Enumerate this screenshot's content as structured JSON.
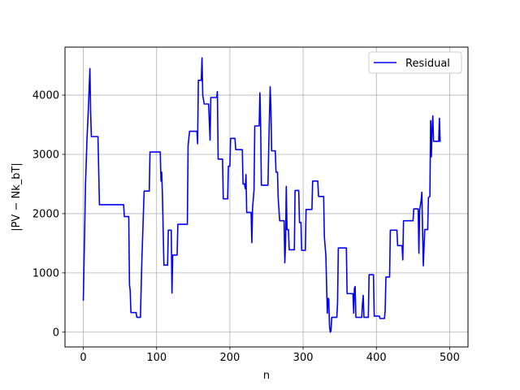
{
  "chart_data": {
    "type": "line",
    "xlabel": "n",
    "ylabel": "|PV − Nk_bT|",
    "xlim": [
      -25,
      525
    ],
    "ylim": [
      -250,
      4810
    ],
    "xticks": [
      0,
      100,
      200,
      300,
      400,
      500
    ],
    "yticks": [
      0,
      1000,
      2000,
      3000,
      4000
    ],
    "grid": true,
    "legend_position": "top-right",
    "series": [
      {
        "name": "Residual",
        "color": "#0000ff",
        "points": [
          [
            0,
            530
          ],
          [
            3,
            2500
          ],
          [
            5,
            3250
          ],
          [
            7,
            3800
          ],
          [
            9,
            4450
          ],
          [
            10,
            3700
          ],
          [
            11,
            3300
          ],
          [
            20,
            3300
          ],
          [
            22,
            2150
          ],
          [
            55,
            2150
          ],
          [
            56,
            1950
          ],
          [
            62,
            1950
          ],
          [
            63,
            800
          ],
          [
            64,
            700
          ],
          [
            65,
            330
          ],
          [
            72,
            330
          ],
          [
            73,
            250
          ],
          [
            78,
            250
          ],
          [
            79,
            780
          ],
          [
            80,
            1250
          ],
          [
            83,
            2380
          ],
          [
            90,
            2380
          ],
          [
            91,
            3040
          ],
          [
            105,
            3040
          ],
          [
            106,
            2550
          ],
          [
            107,
            2700
          ],
          [
            108,
            2300
          ],
          [
            110,
            1130
          ],
          [
            115,
            1130
          ],
          [
            116,
            1720
          ],
          [
            120,
            1720
          ],
          [
            121,
            660
          ],
          [
            122,
            1300
          ],
          [
            128,
            1300
          ],
          [
            129,
            1820
          ],
          [
            142,
            1820
          ],
          [
            143,
            3150
          ],
          [
            145,
            3390
          ],
          [
            155,
            3390
          ],
          [
            156,
            3180
          ],
          [
            157,
            4250
          ],
          [
            161,
            4250
          ],
          [
            162,
            4630
          ],
          [
            163,
            4000
          ],
          [
            165,
            3850
          ],
          [
            171,
            3850
          ],
          [
            173,
            3240
          ],
          [
            174,
            3960
          ],
          [
            182,
            3960
          ],
          [
            183,
            4060
          ],
          [
            184,
            2920
          ],
          [
            190,
            2920
          ],
          [
            191,
            2250
          ],
          [
            197,
            2250
          ],
          [
            198,
            2800
          ],
          [
            200,
            2800
          ],
          [
            201,
            3270
          ],
          [
            207,
            3270
          ],
          [
            208,
            3080
          ],
          [
            217,
            3080
          ],
          [
            218,
            2500
          ],
          [
            220,
            2500
          ],
          [
            221,
            2420
          ],
          [
            222,
            2660
          ],
          [
            223,
            2020
          ],
          [
            229,
            2020
          ],
          [
            230,
            1510
          ],
          [
            231,
            2100
          ],
          [
            233,
            2400
          ],
          [
            234,
            3480
          ],
          [
            240,
            3480
          ],
          [
            241,
            4040
          ],
          [
            242,
            3500
          ],
          [
            243,
            2480
          ],
          [
            252,
            2480
          ],
          [
            253,
            3100
          ],
          [
            255,
            4140
          ],
          [
            256,
            3800
          ],
          [
            257,
            3060
          ],
          [
            262,
            3060
          ],
          [
            263,
            2700
          ],
          [
            265,
            2700
          ],
          [
            266,
            2250
          ],
          [
            268,
            1880
          ],
          [
            274,
            1880
          ],
          [
            275,
            1170
          ],
          [
            276,
            1500
          ],
          [
            277,
            2460
          ],
          [
            278,
            1730
          ],
          [
            280,
            1730
          ],
          [
            281,
            1390
          ],
          [
            288,
            1390
          ],
          [
            289,
            2390
          ],
          [
            294,
            2390
          ],
          [
            295,
            1850
          ],
          [
            297,
            1850
          ],
          [
            298,
            1380
          ],
          [
            303,
            1380
          ],
          [
            304,
            2070
          ],
          [
            312,
            2070
          ],
          [
            313,
            2550
          ],
          [
            320,
            2550
          ],
          [
            321,
            2290
          ],
          [
            328,
            2290
          ],
          [
            329,
            1600
          ],
          [
            331,
            1300
          ],
          [
            333,
            320
          ],
          [
            334,
            570
          ],
          [
            335,
            560
          ],
          [
            336,
            100
          ],
          [
            337,
            0
          ],
          [
            338,
            20
          ],
          [
            339,
            250
          ],
          [
            346,
            250
          ],
          [
            347,
            500
          ],
          [
            348,
            1420
          ],
          [
            359,
            1420
          ],
          [
            360,
            650
          ],
          [
            368,
            650
          ],
          [
            369,
            320
          ],
          [
            370,
            740
          ],
          [
            371,
            770
          ],
          [
            372,
            250
          ],
          [
            380,
            250
          ],
          [
            381,
            480
          ],
          [
            382,
            620
          ],
          [
            383,
            250
          ],
          [
            389,
            250
          ],
          [
            390,
            970
          ],
          [
            396,
            970
          ],
          [
            397,
            270
          ],
          [
            404,
            270
          ],
          [
            405,
            230
          ],
          [
            411,
            230
          ],
          [
            412,
            370
          ],
          [
            413,
            930
          ],
          [
            418,
            930
          ],
          [
            419,
            1720
          ],
          [
            428,
            1720
          ],
          [
            429,
            1460
          ],
          [
            435,
            1460
          ],
          [
            436,
            1220
          ],
          [
            437,
            1880
          ],
          [
            450,
            1880
          ],
          [
            451,
            2080
          ],
          [
            457,
            2080
          ],
          [
            458,
            1330
          ],
          [
            459,
            2060
          ],
          [
            461,
            2220
          ],
          [
            462,
            2360
          ],
          [
            464,
            1120
          ],
          [
            465,
            1430
          ],
          [
            466,
            1730
          ],
          [
            470,
            1730
          ],
          [
            471,
            2270
          ],
          [
            473,
            2290
          ],
          [
            474,
            3570
          ],
          [
            475,
            2960
          ],
          [
            476,
            3450
          ],
          [
            477,
            3650
          ],
          [
            478,
            3220
          ],
          [
            485,
            3220
          ],
          [
            486,
            3610
          ],
          [
            487,
            3210
          ]
        ]
      }
    ]
  }
}
